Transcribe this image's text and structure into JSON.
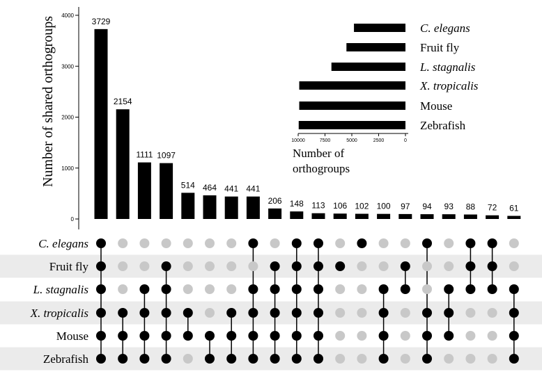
{
  "chart_data": [
    {
      "type": "bar",
      "orientation": "vertical",
      "ylabel": "Number of shared orthogroups",
      "ylim": [
        0,
        4000
      ],
      "yticks": [
        0,
        1000,
        2000,
        3000,
        4000
      ],
      "values": [
        3729,
        2154,
        1111,
        1097,
        514,
        464,
        441,
        441,
        206,
        148,
        113,
        106,
        102,
        100,
        97,
        94,
        93,
        88,
        72,
        61
      ],
      "value_labels": [
        "3729",
        "2154",
        "1111",
        "1097",
        "514",
        "464",
        "441",
        "441",
        "206",
        "148",
        "113",
        "106",
        "102",
        "100",
        "97",
        "94",
        "93",
        "88",
        "72",
        "61"
      ],
      "bar_color": "#000000"
    },
    {
      "type": "bar",
      "orientation": "horizontal",
      "xlabel_lines": [
        "Number of",
        "orthogroups"
      ],
      "xlim": [
        10000,
        0
      ],
      "xticks": [
        10000,
        7500,
        5000,
        2500,
        0
      ],
      "categories": [
        "C. elegans",
        "Fruit fly",
        "L. stagnalis",
        "X. tropicalis",
        "Mouse",
        "Zebrafish"
      ],
      "italic": [
        true,
        false,
        true,
        true,
        false,
        false
      ],
      "values": [
        4800,
        5500,
        6900,
        9900,
        9900,
        9950
      ]
    },
    {
      "type": "table",
      "kind": "upset-membership-matrix",
      "rows": [
        "C. elegans",
        "Fruit fly",
        "L. stagnalis",
        "X. tropicalis",
        "Mouse",
        "Zebrafish"
      ],
      "italic": [
        true,
        false,
        true,
        true,
        false,
        false
      ],
      "columns": [
        [
          0,
          1,
          2,
          3,
          4,
          5
        ],
        [
          3,
          4,
          5
        ],
        [
          2,
          3,
          4,
          5
        ],
        [
          1,
          2,
          3,
          4,
          5
        ],
        [
          3,
          4
        ],
        [
          4,
          5
        ],
        [
          3,
          4,
          5
        ],
        [
          0,
          2,
          3,
          4,
          5
        ],
        [
          1,
          2,
          3,
          4,
          5
        ],
        [
          0,
          1,
          2,
          3,
          4,
          5
        ],
        [
          0,
          1,
          2,
          3,
          4,
          5
        ],
        [
          1
        ],
        [
          0
        ],
        [
          2,
          3,
          4,
          5
        ],
        [
          1,
          2
        ],
        [
          0,
          3,
          4,
          5
        ],
        [
          2,
          3,
          4
        ],
        [
          0,
          1,
          2
        ],
        [
          0,
          1,
          2
        ],
        [
          2,
          3,
          4,
          5
        ]
      ],
      "active_color": "#000000",
      "inactive_color": "#c8c8c8",
      "stripe_color": "#ebebeb"
    }
  ]
}
